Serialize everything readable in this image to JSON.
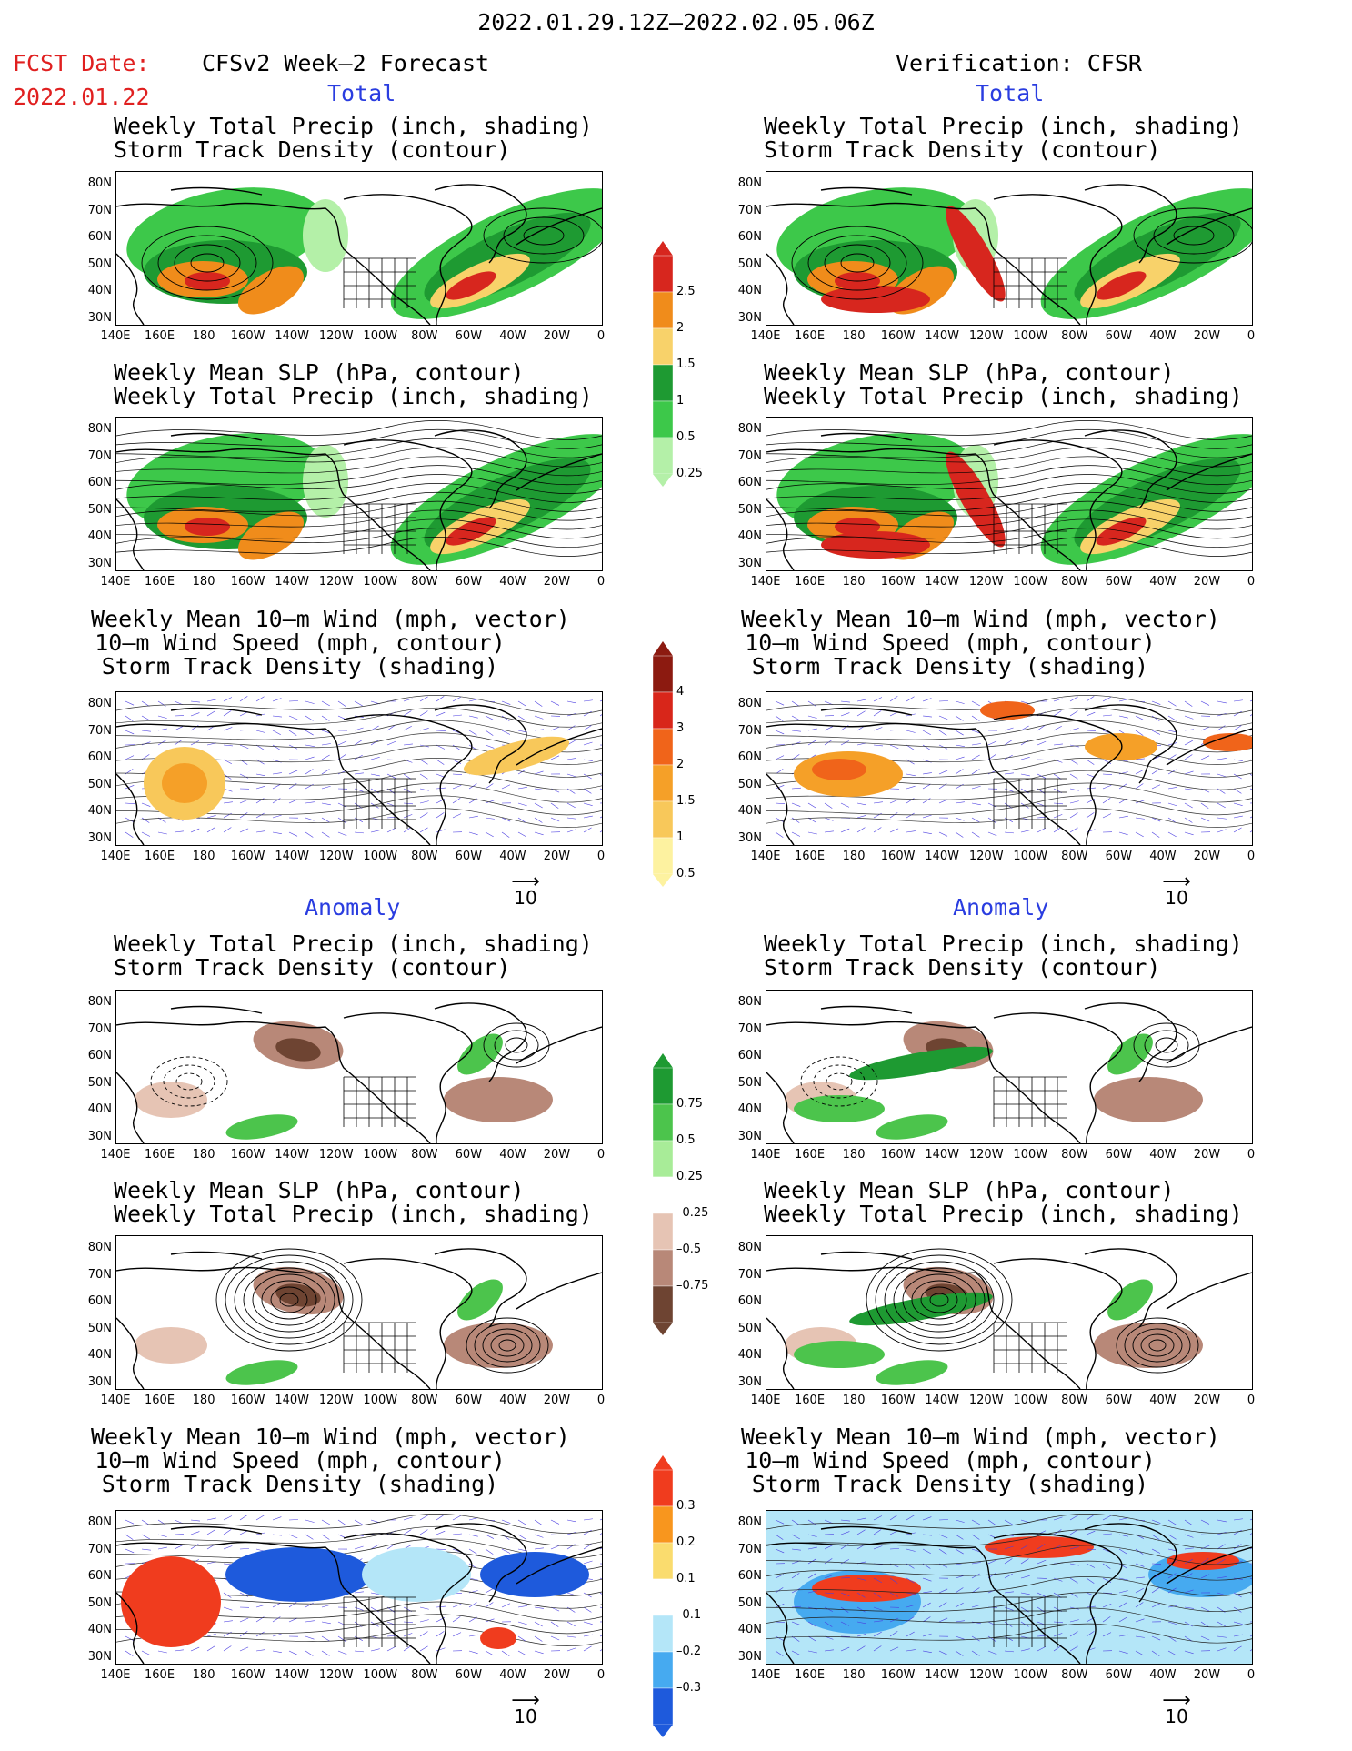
{
  "header": {
    "period": "2022.01.29.12Z–2022.02.05.06Z",
    "fcst_label": "FCST Date:",
    "fcst_date": "2022.01.22",
    "left_title": "CFSv2 Week–2 Forecast",
    "right_title": "Verification: CFSR",
    "total_label": "Total",
    "anomaly_label": "Anomaly"
  },
  "panel_titles": {
    "precip_storm": [
      "Weekly Total Precip (inch, shading)",
      "Storm Track Density (contour)"
    ],
    "slp_precip": [
      "Weekly Mean SLP (hPa, contour)",
      "Weekly Total Precip (inch, shading)"
    ],
    "wind": [
      "Weekly Mean 10–m Wind (mph, vector)",
      "10–m Wind Speed (mph, contour)",
      "Storm Track Density (shading)"
    ]
  },
  "axes": {
    "lat_labels": [
      "80N",
      "70N",
      "60N",
      "50N",
      "40N",
      "30N"
    ],
    "lon_labels": [
      "140E",
      "160E",
      "180",
      "160W",
      "140W",
      "120W",
      "100W",
      "80W",
      "60W",
      "40W",
      "20W",
      "0"
    ]
  },
  "vector_ref": "10",
  "colorbars": {
    "total_precip": {
      "labels": [
        "2.5",
        "2",
        "1.5",
        "1",
        "0.5",
        "0.25"
      ],
      "colors": [
        "#d7261e",
        "#f08c1b",
        "#f8d26a",
        "#1e9a32",
        "#3dc84a",
        "#b4f0a8"
      ]
    },
    "total_storm": {
      "labels": [
        "4",
        "3",
        "2",
        "1.5",
        "1",
        "0.5"
      ],
      "colors": [
        "#8c1a10",
        "#d8261a",
        "#f0641a",
        "#f5a028",
        "#f8c85a",
        "#fdf2a0"
      ]
    },
    "anom_precip": {
      "labels": [
        "0.75",
        "0.5",
        "0.25",
        "–0.25",
        "–0.5",
        "–0.75"
      ],
      "colors": [
        "#1e9a32",
        "#4cc44c",
        "#a8ec98",
        "#ffffff",
        "#e6c4b4",
        "#b88878",
        "#6e4432"
      ]
    },
    "anom_storm": {
      "labels": [
        "0.3",
        "0.2",
        "0.1",
        "–0.1",
        "–0.2",
        "–0.3"
      ],
      "colors": [
        "#f03c1e",
        "#f8961e",
        "#fadc6e",
        "#ffffff",
        "#b4e6f8",
        "#46aaf0",
        "#1e5adc"
      ]
    }
  }
}
